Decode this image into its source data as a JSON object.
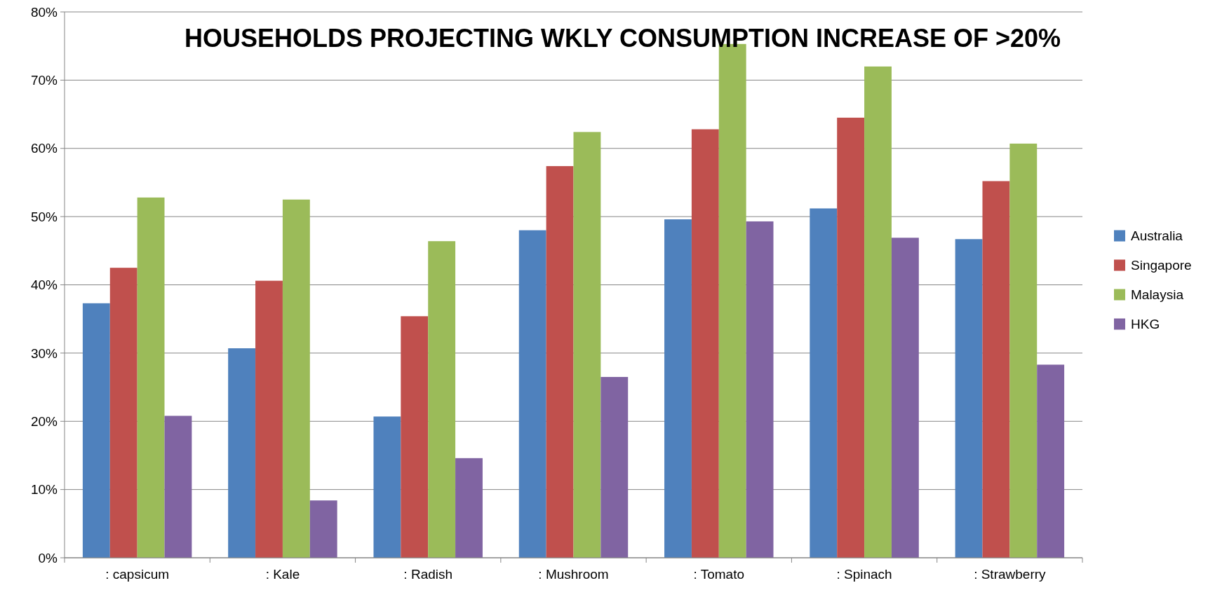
{
  "chart_data": {
    "type": "bar",
    "title": "HOUSEHOLDS PROJECTING WKLY CONSUMPTION INCREASE OF >20%",
    "categories": [
      ": capsicum",
      ": Kale",
      ": Radish",
      ": Mushroom",
      ": Tomato",
      ": Spinach",
      ": Strawberry"
    ],
    "series": [
      {
        "name": "Australia",
        "color": "#4f81bd",
        "values": [
          37.3,
          30.7,
          20.7,
          48.0,
          49.6,
          51.2,
          46.7
        ]
      },
      {
        "name": "Singapore",
        "color": "#c0504d",
        "values": [
          42.5,
          40.6,
          35.4,
          57.4,
          62.8,
          64.5,
          55.2
        ]
      },
      {
        "name": "Malaysia",
        "color": "#9bbb59",
        "values": [
          52.8,
          52.5,
          46.4,
          62.4,
          75.3,
          72.0,
          60.7
        ]
      },
      {
        "name": "HKG",
        "color": "#8064a2",
        "values": [
          20.8,
          8.4,
          14.6,
          26.5,
          49.3,
          46.9,
          28.3
        ]
      }
    ],
    "ylim": [
      0,
      80
    ],
    "yticks": [
      {
        "value": 0,
        "label": "0%"
      },
      {
        "value": 10,
        "label": "10%"
      },
      {
        "value": 20,
        "label": "20%"
      },
      {
        "value": 30,
        "label": "30%"
      },
      {
        "value": 40,
        "label": "40%"
      },
      {
        "value": 50,
        "label": "50%"
      },
      {
        "value": 60,
        "label": "60%"
      },
      {
        "value": 70,
        "label": "70%"
      },
      {
        "value": 80,
        "label": "80%"
      }
    ],
    "grid": "y",
    "legend": "right"
  }
}
